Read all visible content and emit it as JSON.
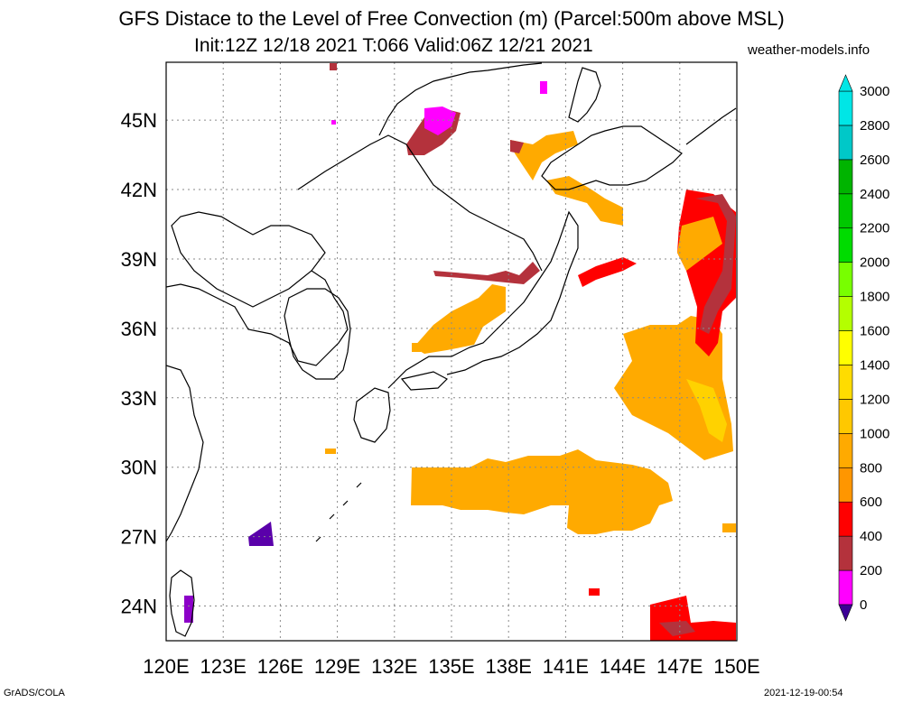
{
  "title": {
    "line1": "GFS Distace to the Level of Free Convection (m) (Parcel:500m above MSL)",
    "line2": "Init:12Z 12/18 2021 T:066 Valid:06Z 12/21 2021"
  },
  "site": "weather-models.info",
  "footer": {
    "left": "GrADS/COLA",
    "right": "2021-12-19-00:54"
  },
  "map": {
    "lon_labels": [
      "120E",
      "123E",
      "126E",
      "129E",
      "132E",
      "135E",
      "138E",
      "141E",
      "144E",
      "147E",
      "150E"
    ],
    "lat_labels": [
      "45N",
      "42N",
      "39N",
      "36N",
      "33N",
      "30N",
      "27N",
      "24N"
    ],
    "lon_range": [
      120,
      150
    ],
    "lat_range": [
      22.5,
      47.5
    ],
    "gridlines": "dotted",
    "variable": "distance to LFC (m)"
  },
  "colorbar": {
    "labels": [
      "0",
      "200",
      "400",
      "600",
      "800",
      "1000",
      "1200",
      "1400",
      "1600",
      "1800",
      "2000",
      "2200",
      "2400",
      "2600",
      "2800",
      "3000"
    ],
    "colors": [
      "#3c0096",
      "#ff00ff",
      "#b4323c",
      "#ff0000",
      "#ff9600",
      "#ffaa00",
      "#ffc800",
      "#ffdc00",
      "#ffff00",
      "#b4ff00",
      "#78ff00",
      "#00dc00",
      "#00c800",
      "#00b400",
      "#00c8c8",
      "#00e6e6",
      "#00f0f0"
    ],
    "arrow_low": "#3c0096",
    "arrow_high": "#00e6e6"
  }
}
